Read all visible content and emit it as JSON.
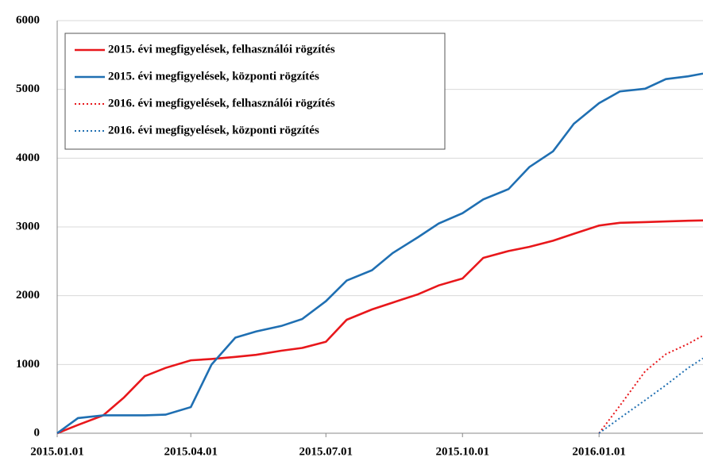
{
  "chart_data": {
    "type": "line",
    "x": [
      "2015.01.01",
      "2015.01.15",
      "2015.02.01",
      "2015.02.15",
      "2015.03.01",
      "2015.03.15",
      "2015.04.01",
      "2015.04.15",
      "2015.05.01",
      "2015.05.15",
      "2015.06.01",
      "2015.06.15",
      "2015.07.01",
      "2015.07.15",
      "2015.08.01",
      "2015.08.15",
      "2015.09.01",
      "2015.09.15",
      "2015.10.01",
      "2015.10.15",
      "2015.11.01",
      "2015.11.15",
      "2015.12.01",
      "2015.12.15",
      "2016.01.01",
      "2016.01.15",
      "2016.02.01",
      "2016.02.15",
      "2016.03.01",
      "2016.03.11"
    ],
    "series": [
      {
        "name": "2015. évi megfigyelések, felhasználói rögzítés",
        "color": "#e8171b",
        "dash": "solid",
        "values": [
          0,
          120,
          260,
          520,
          830,
          950,
          1060,
          1080,
          1110,
          1140,
          1200,
          1240,
          1330,
          1650,
          1800,
          1900,
          2020,
          2150,
          2250,
          2550,
          2650,
          2710,
          2800,
          2900,
          3020,
          3060,
          3070,
          3080,
          3090,
          3095
        ]
      },
      {
        "name": "2015. évi megfigyelések, központi rögzítés",
        "color": "#1f6fb2",
        "dash": "solid",
        "values": [
          0,
          220,
          260,
          260,
          260,
          270,
          380,
          1000,
          1390,
          1480,
          1560,
          1660,
          1920,
          2220,
          2370,
          2620,
          2850,
          3050,
          3200,
          3400,
          3550,
          3870,
          4100,
          4500,
          4800,
          4970,
          5010,
          5150,
          5190,
          5230
        ]
      },
      {
        "name": "2016. évi megfigyelések, felhasználói rögzítés",
        "color": "#e8171b",
        "dash": "dotted",
        "values": [
          null,
          null,
          null,
          null,
          null,
          null,
          null,
          null,
          null,
          null,
          null,
          null,
          null,
          null,
          null,
          null,
          null,
          null,
          null,
          null,
          null,
          null,
          null,
          null,
          0,
          400,
          900,
          1150,
          1300,
          1420
        ]
      },
      {
        "name": "2016. évi megfigyelések, központi rögzítés",
        "color": "#1f6fb2",
        "dash": "dotted",
        "values": [
          null,
          null,
          null,
          null,
          null,
          null,
          null,
          null,
          null,
          null,
          null,
          null,
          null,
          null,
          null,
          null,
          null,
          null,
          null,
          null,
          null,
          null,
          null,
          null,
          0,
          220,
          480,
          700,
          950,
          1090
        ]
      }
    ],
    "xlim": [
      "2015.01.01",
      "2016.03.11"
    ],
    "xticks": [
      "2015.01.01",
      "2015.04.01",
      "2015.07.01",
      "2015.10.01",
      "2016.01.01"
    ],
    "ylim": [
      0,
      6000
    ],
    "yticks": [
      0,
      1000,
      2000,
      3000,
      4000,
      5000,
      6000
    ],
    "grid": true,
    "legend": "upper-left"
  }
}
